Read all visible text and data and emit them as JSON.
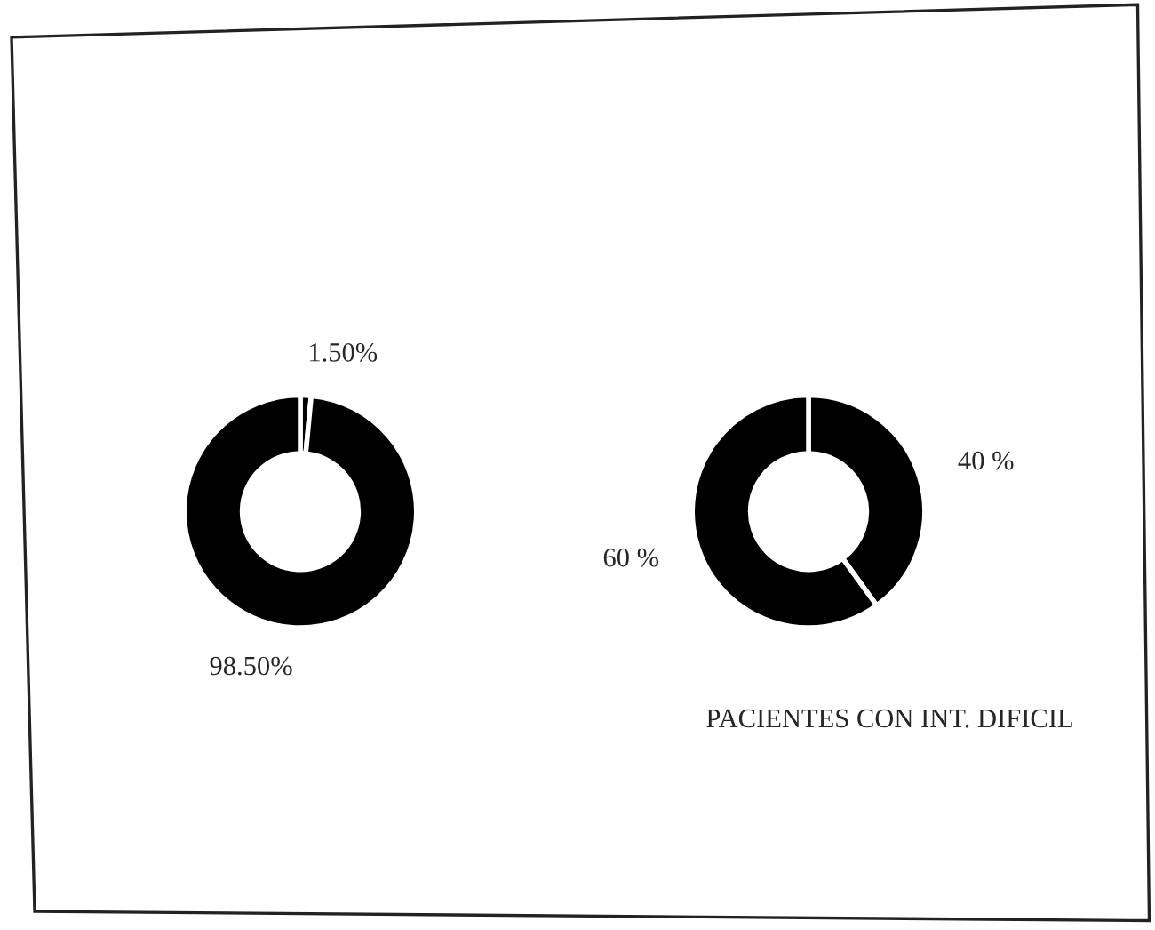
{
  "chart_data": [
    {
      "type": "donut",
      "categories": [
        null,
        null
      ],
      "values": [
        1.5,
        98.5
      ],
      "colors": [
        "#000000",
        "#000000"
      ],
      "value_labels": [
        "1.50%",
        "98.50%"
      ]
    },
    {
      "type": "donut",
      "categories": [
        null,
        null
      ],
      "values": [
        40,
        60
      ],
      "colors": [
        "#000000",
        "#000000"
      ],
      "value_labels": [
        "40 %",
        "60 %"
      ],
      "annotations": [
        "PACIENTES CON INT. DIFICIL"
      ]
    }
  ]
}
